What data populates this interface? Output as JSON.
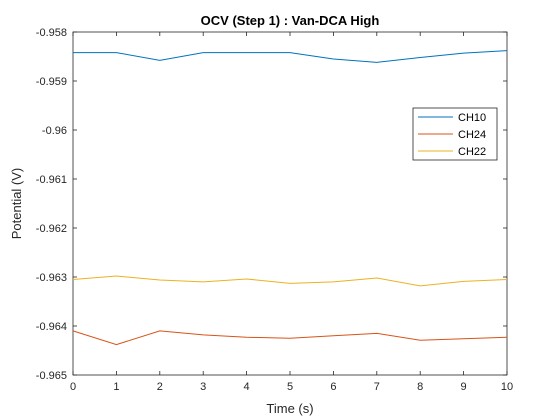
{
  "chart_data": {
    "type": "line",
    "title": "OCV (Step 1) : Van-DCA High",
    "xlabel": "Time (s)",
    "ylabel": "Potential (V)",
    "xlim": [
      0,
      10
    ],
    "ylim": [
      -0.965,
      -0.958
    ],
    "x_ticks": [
      "0",
      "1",
      "2",
      "3",
      "4",
      "5",
      "6",
      "7",
      "8",
      "9",
      "10"
    ],
    "y_ticks": [
      "-0.958",
      "-0.959",
      "-0.96",
      "-0.961",
      "-0.962",
      "-0.963",
      "-0.964",
      "-0.965"
    ],
    "x": [
      0,
      1,
      2,
      3,
      4,
      5,
      6,
      7,
      8,
      9,
      10
    ],
    "series": [
      {
        "name": "CH10",
        "color": "#0072BD",
        "values": [
          -0.95842,
          -0.95842,
          -0.95858,
          -0.95842,
          -0.95842,
          -0.95842,
          -0.95855,
          -0.95862,
          -0.95852,
          -0.95843,
          -0.95838
        ]
      },
      {
        "name": "CH24",
        "color": "#D95319",
        "values": [
          -0.9641,
          -0.96438,
          -0.9641,
          -0.96418,
          -0.96423,
          -0.96425,
          -0.9642,
          -0.96415,
          -0.96429,
          -0.96426,
          -0.96423
        ]
      },
      {
        "name": "CH22",
        "color": "#EDB120",
        "values": [
          -0.96305,
          -0.96298,
          -0.96306,
          -0.9631,
          -0.96304,
          -0.96313,
          -0.9631,
          -0.96302,
          -0.96318,
          -0.96309,
          -0.96305
        ]
      }
    ],
    "grid": false,
    "legend_position": "right"
  }
}
